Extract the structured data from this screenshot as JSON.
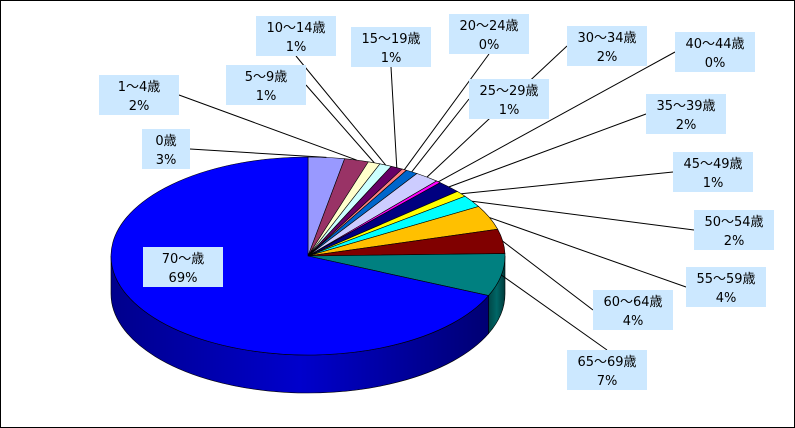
{
  "chart_data": {
    "type": "pie",
    "title": "",
    "slices": [
      {
        "category": "0歳",
        "percent": "3%",
        "value": 3,
        "color": "#9999ff"
      },
      {
        "category": "1～4歳",
        "percent": "2%",
        "value": 2,
        "color": "#993366"
      },
      {
        "category": "5～9歳",
        "percent": "1%",
        "value": 1,
        "color": "#ffffcc"
      },
      {
        "category": "10～14歳",
        "percent": "1%",
        "value": 1,
        "color": "#ccffff"
      },
      {
        "category": "15～19歳",
        "percent": "1%",
        "value": 1,
        "color": "#660066"
      },
      {
        "category": "20～24歳",
        "percent": "0%",
        "value": 0.4,
        "color": "#ff8080"
      },
      {
        "category": "25～29歳",
        "percent": "1%",
        "value": 1,
        "color": "#0066cc"
      },
      {
        "category": "30～34歳",
        "percent": "2%",
        "value": 2,
        "color": "#ccccff"
      },
      {
        "category": "40～44歳",
        "percent": "0%",
        "value": 0.4,
        "color": "#ff00ff"
      },
      {
        "category": "35～39歳",
        "percent": "2%",
        "value": 2,
        "color": "#000080"
      },
      {
        "category": "45～49歳",
        "percent": "1%",
        "value": 1,
        "color": "#ffff00"
      },
      {
        "category": "50～54歳",
        "percent": "2%",
        "value": 2,
        "color": "#00ffff"
      },
      {
        "category": "55～59歳",
        "percent": "4%",
        "value": 4,
        "color": "#ffc000"
      },
      {
        "category": "60～64歳",
        "percent": "4%",
        "value": 4,
        "color": "#800000"
      },
      {
        "category": "65～69歳",
        "percent": "7%",
        "value": 7,
        "color": "#008080"
      },
      {
        "category": "70～歳",
        "percent": "69%",
        "value": 69,
        "color": "#0000ff"
      }
    ],
    "legend": "none",
    "label_box_color": "#cce8ff"
  }
}
